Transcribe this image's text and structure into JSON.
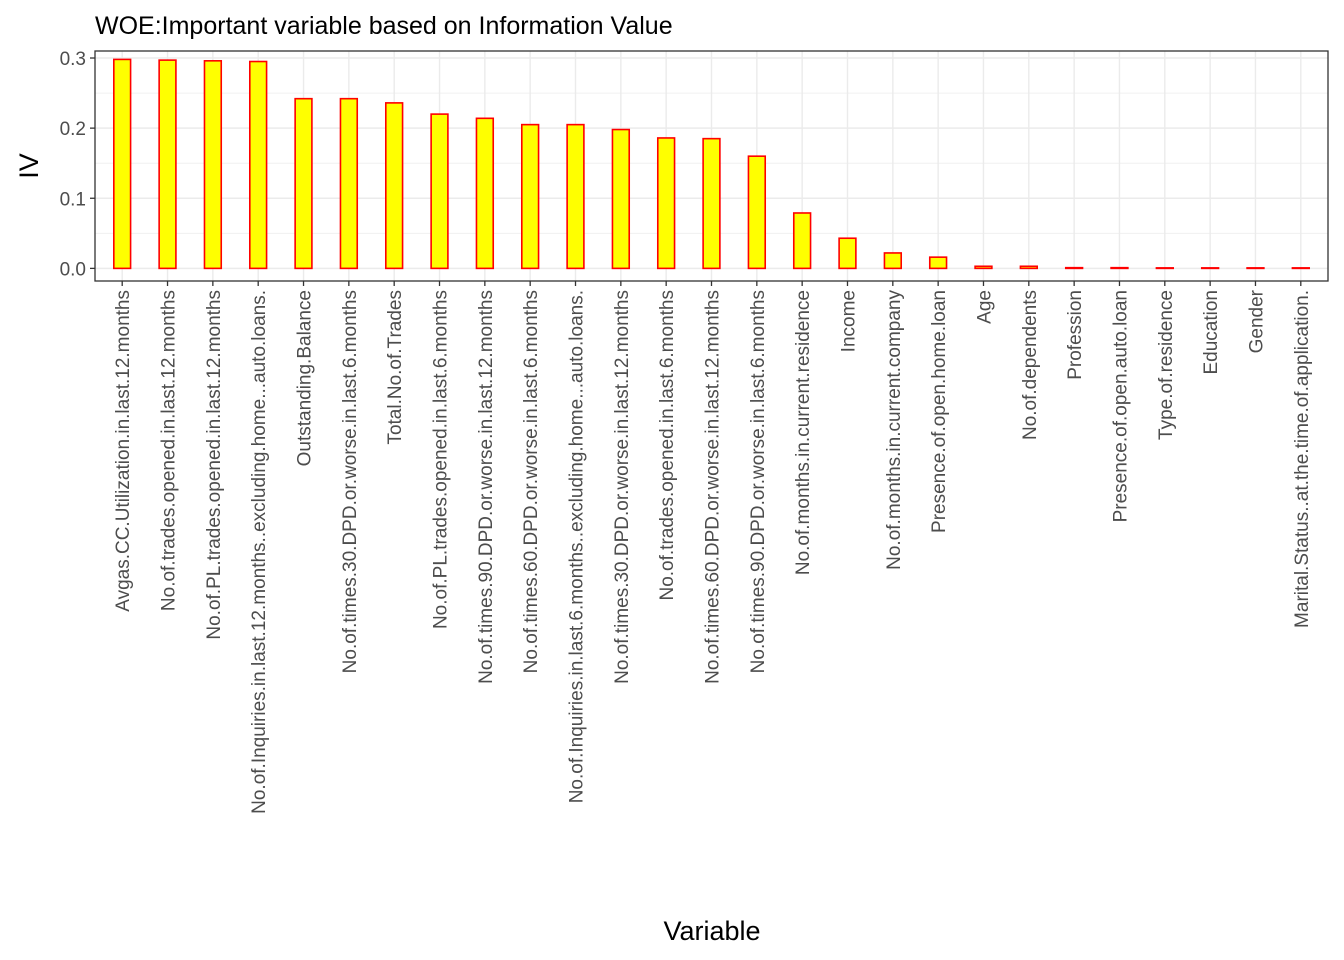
{
  "chart_data": {
    "type": "bar",
    "title": "WOE:Important variable based on Information Value",
    "xlabel": "Variable",
    "ylabel": "IV",
    "ylim": [
      -0.018,
      0.31
    ],
    "yticks": [
      0.0,
      0.1,
      0.2,
      0.3
    ],
    "ytick_labels": [
      "0.0",
      "0.1",
      "0.2",
      "0.3"
    ],
    "grid": true,
    "bar_fill": "#ffff00",
    "bar_border": "#ff0000",
    "categories": [
      "Avgas.CC.Utilization.in.last.12.months",
      "No.of.trades.opened.in.last.12.months",
      "No.of.PL.trades.opened.in.last.12.months",
      "No.of.Inquiries.in.last.12.months..excluding.home...auto.loans.",
      "Outstanding.Balance",
      "No.of.times.30.DPD.or.worse.in.last.6.months",
      "Total.No.of.Trades",
      "No.of.PL.trades.opened.in.last.6.months",
      "No.of.times.90.DPD.or.worse.in.last.12.months",
      "No.of.times.60.DPD.or.worse.in.last.6.months",
      "No.of.Inquiries.in.last.6.months..excluding.home...auto.loans.",
      "No.of.times.30.DPD.or.worse.in.last.12.months",
      "No.of.trades.opened.in.last.6.months",
      "No.of.times.60.DPD.or.worse.in.last.12.months",
      "No.of.times.90.DPD.or.worse.in.last.6.months",
      "No.of.months.in.current.residence",
      "Income",
      "No.of.months.in.current.company",
      "Presence.of.open.home.loan",
      "Age",
      "No.of.dependents",
      "Profession",
      "Presence.of.open.auto.loan",
      "Type.of.residence",
      "Education",
      "Gender",
      "Marital.Status..at.the.time.of.application."
    ],
    "values": [
      0.298,
      0.297,
      0.296,
      0.295,
      0.242,
      0.242,
      0.236,
      0.22,
      0.214,
      0.205,
      0.205,
      0.198,
      0.186,
      0.185,
      0.16,
      0.079,
      0.043,
      0.022,
      0.016,
      0.003,
      0.003,
      0.001,
      0.001,
      0.0005,
      0.0004,
      0.0003,
      0.0002
    ]
  }
}
